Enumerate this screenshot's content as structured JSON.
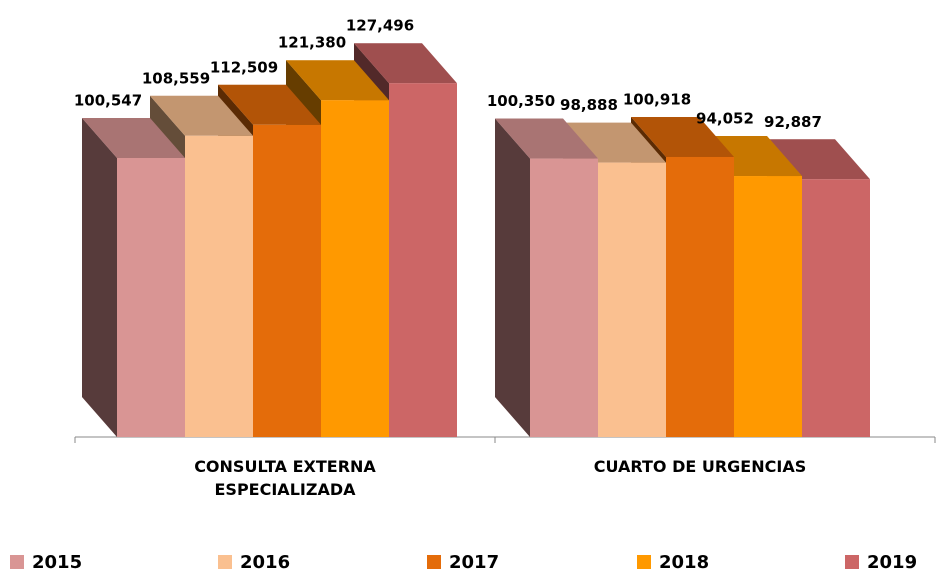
{
  "chart_data": {
    "type": "bar3d",
    "categories": [
      "CONSULTA EXTERNA ESPECIALIZADA",
      "CUARTO DE URGENCIAS"
    ],
    "series": [
      {
        "name": "2015",
        "color": "#d99594",
        "values": [
          100547,
          100350
        ],
        "value_labels": [
          "100,547",
          "100,350"
        ]
      },
      {
        "name": "2016",
        "color": "#fac090",
        "values": [
          108559,
          98888
        ],
        "value_labels": [
          "108,559",
          "98,888"
        ]
      },
      {
        "name": "2017",
        "color": "#e46c0a",
        "values": [
          112509,
          100918
        ],
        "value_labels": [
          "112,509",
          "100,918"
        ]
      },
      {
        "name": "2018",
        "color": "#ff9900",
        "values": [
          121380,
          94052
        ],
        "value_labels": [
          "121,380",
          "94,052"
        ]
      },
      {
        "name": "2019",
        "color": "#cc6666",
        "values": [
          127496,
          92887
        ],
        "value_labels": [
          "127,496",
          "92,887"
        ]
      }
    ],
    "legend": "bottom"
  }
}
